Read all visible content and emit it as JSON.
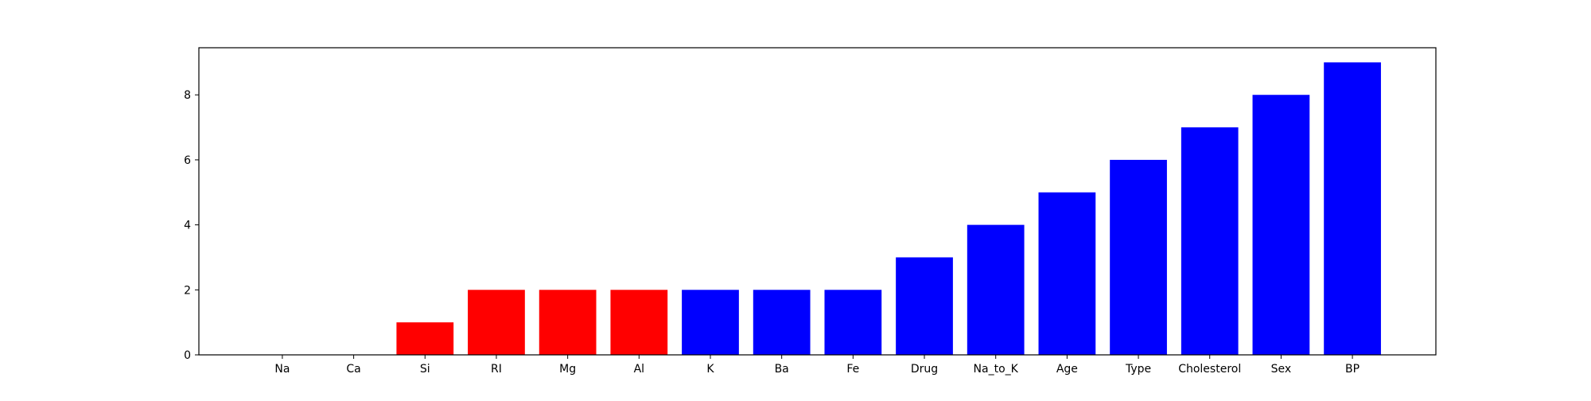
{
  "chart_data": {
    "type": "bar",
    "title": "",
    "xlabel": "",
    "ylabel": "",
    "ylim": [
      0,
      9.45
    ],
    "yticks": [
      0,
      2,
      4,
      6,
      8
    ],
    "grid": false,
    "categories": [
      "Na",
      "Ca",
      "Si",
      "RI",
      "Mg",
      "Al",
      "K",
      "Ba",
      "Fe",
      "Drug",
      "Na_to_K",
      "Age",
      "Type",
      "Cholesterol",
      "Sex",
      "BP"
    ],
    "values": [
      0,
      0,
      1,
      2,
      2,
      2,
      2,
      2,
      2,
      3,
      4,
      5,
      6,
      7,
      8,
      9
    ],
    "colors": [
      "#ff0000",
      "#ff0000",
      "#ff0000",
      "#ff0000",
      "#ff0000",
      "#ff0000",
      "#0000ff",
      "#0000ff",
      "#0000ff",
      "#0000ff",
      "#0000ff",
      "#0000ff",
      "#0000ff",
      "#0000ff",
      "#0000ff",
      "#0000ff"
    ]
  }
}
